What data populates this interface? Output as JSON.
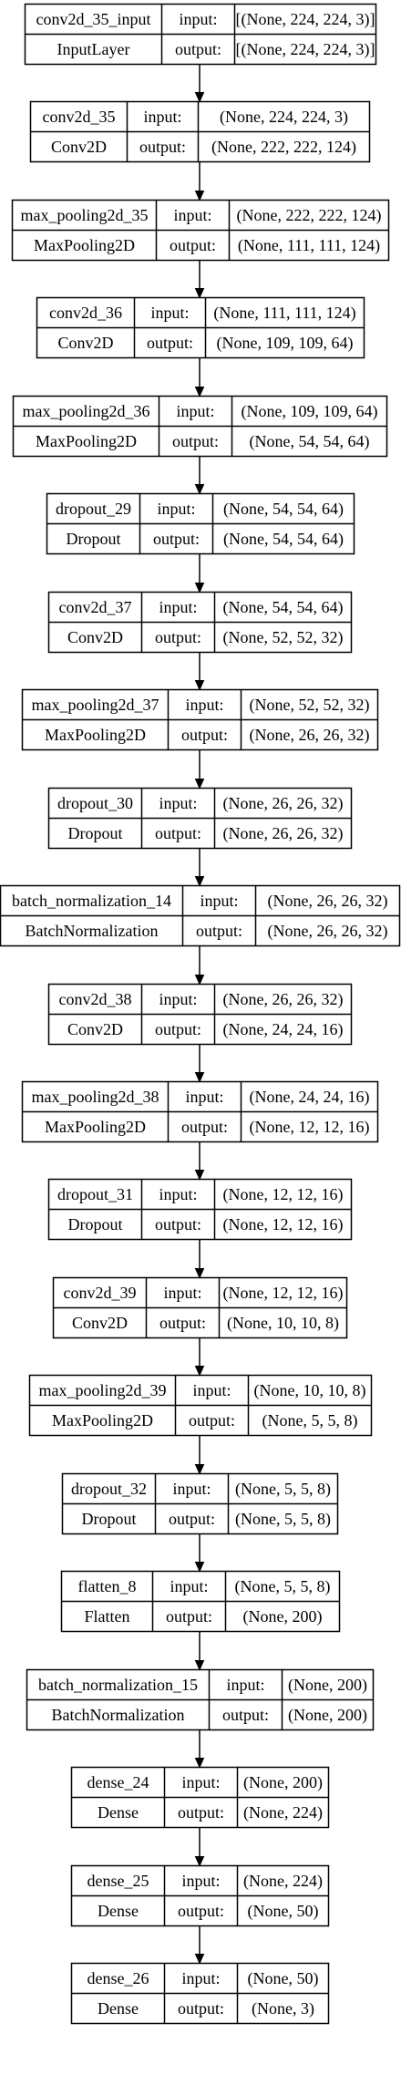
{
  "layers": [
    {
      "name": "conv2d_35_input",
      "type": "InputLayer",
      "input_label": "input:",
      "output_label": "output:",
      "input": "[(None, 224, 224, 3)]",
      "output": "[(None, 224, 224, 3)]"
    },
    {
      "name": "conv2d_35",
      "type": "Conv2D",
      "input_label": "input:",
      "output_label": "output:",
      "input": "(None, 224, 224, 3)",
      "output": "(None, 222, 222, 124)"
    },
    {
      "name": "max_pooling2d_35",
      "type": "MaxPooling2D",
      "input_label": "input:",
      "output_label": "output:",
      "input": "(None, 222, 222, 124)",
      "output": "(None, 111, 111, 124)"
    },
    {
      "name": "conv2d_36",
      "type": "Conv2D",
      "input_label": "input:",
      "output_label": "output:",
      "input": "(None, 111, 111, 124)",
      "output": "(None, 109, 109, 64)"
    },
    {
      "name": "max_pooling2d_36",
      "type": "MaxPooling2D",
      "input_label": "input:",
      "output_label": "output:",
      "input": "(None, 109, 109, 64)",
      "output": "(None, 54, 54, 64)"
    },
    {
      "name": "dropout_29",
      "type": "Dropout",
      "input_label": "input:",
      "output_label": "output:",
      "input": "(None, 54, 54, 64)",
      "output": "(None, 54, 54, 64)"
    },
    {
      "name": "conv2d_37",
      "type": "Conv2D",
      "input_label": "input:",
      "output_label": "output:",
      "input": "(None, 54, 54, 64)",
      "output": "(None, 52, 52, 32)"
    },
    {
      "name": "max_pooling2d_37",
      "type": "MaxPooling2D",
      "input_label": "input:",
      "output_label": "output:",
      "input": "(None, 52, 52, 32)",
      "output": "(None, 26, 26, 32)"
    },
    {
      "name": "dropout_30",
      "type": "Dropout",
      "input_label": "input:",
      "output_label": "output:",
      "input": "(None, 26, 26, 32)",
      "output": "(None, 26, 26, 32)"
    },
    {
      "name": "batch_normalization_14",
      "type": "BatchNormalization",
      "input_label": "input:",
      "output_label": "output:",
      "input": "(None, 26, 26, 32)",
      "output": "(None, 26, 26, 32)"
    },
    {
      "name": "conv2d_38",
      "type": "Conv2D",
      "input_label": "input:",
      "output_label": "output:",
      "input": "(None, 26, 26, 32)",
      "output": "(None, 24, 24, 16)"
    },
    {
      "name": "max_pooling2d_38",
      "type": "MaxPooling2D",
      "input_label": "input:",
      "output_label": "output:",
      "input": "(None, 24, 24, 16)",
      "output": "(None, 12, 12, 16)"
    },
    {
      "name": "dropout_31",
      "type": "Dropout",
      "input_label": "input:",
      "output_label": "output:",
      "input": "(None, 12, 12, 16)",
      "output": "(None, 12, 12, 16)"
    },
    {
      "name": "conv2d_39",
      "type": "Conv2D",
      "input_label": "input:",
      "output_label": "output:",
      "input": "(None, 12, 12, 16)",
      "output": "(None, 10, 10, 8)"
    },
    {
      "name": "max_pooling2d_39",
      "type": "MaxPooling2D",
      "input_label": "input:",
      "output_label": "output:",
      "input": "(None, 10, 10, 8)",
      "output": "(None, 5, 5, 8)"
    },
    {
      "name": "dropout_32",
      "type": "Dropout",
      "input_label": "input:",
      "output_label": "output:",
      "input": "(None, 5, 5, 8)",
      "output": "(None, 5, 5, 8)"
    },
    {
      "name": "flatten_8",
      "type": "Flatten",
      "input_label": "input:",
      "output_label": "output:",
      "input": "(None, 5, 5, 8)",
      "output": "(None, 200)"
    },
    {
      "name": "batch_normalization_15",
      "type": "BatchNormalization",
      "input_label": "input:",
      "output_label": "output:",
      "input": "(None, 200)",
      "output": "(None, 200)"
    },
    {
      "name": "dense_24",
      "type": "Dense",
      "input_label": "input:",
      "output_label": "output:",
      "input": "(None, 200)",
      "output": "(None, 224)"
    },
    {
      "name": "dense_25",
      "type": "Dense",
      "input_label": "input:",
      "output_label": "output:",
      "input": "(None, 224)",
      "output": "(None, 50)"
    },
    {
      "name": "dense_26",
      "type": "Dense",
      "input_label": "input:",
      "output_label": "output:",
      "input": "(None, 50)",
      "output": "(None, 3)"
    }
  ]
}
